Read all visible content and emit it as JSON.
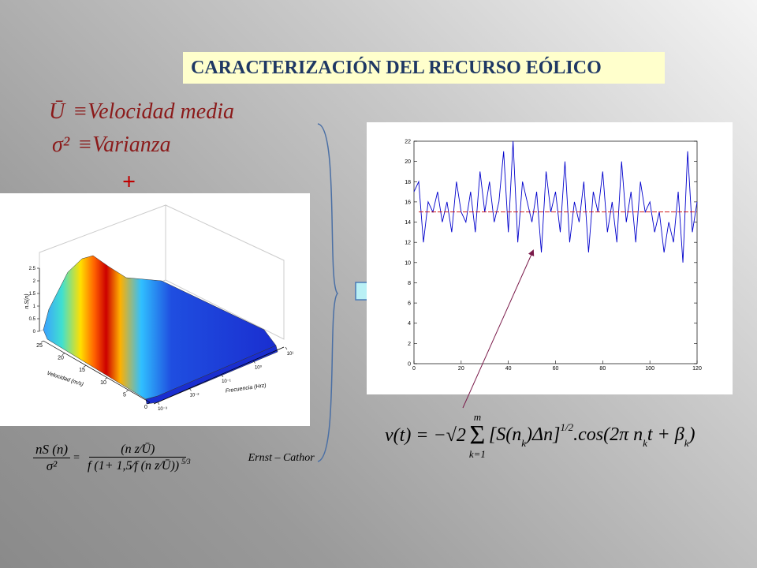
{
  "title": "CARACTERIZACIÓN DEL RECURSO EÓLICO",
  "definitions": [
    {
      "symbol": "Ū",
      "text": "≡Velocidad media"
    },
    {
      "symbol": "σ²",
      "text": "≡Varianza"
    }
  ],
  "plus": "+",
  "surface_plot": {
    "z_label": "n.S(n)",
    "x_label": "Velocidad (m/s)",
    "y_label": "Frecuencia (Hrz)",
    "zlim": [
      0,
      2.5
    ],
    "zticks": [
      0,
      0.5,
      1,
      1.5,
      2,
      2.5
    ],
    "xlim": [
      0,
      25
    ],
    "xticks": [
      0,
      5,
      10,
      15,
      20,
      25
    ],
    "ylim": [
      0.001,
      10
    ],
    "yticks": [
      {
        "value": 0.001,
        "label": "10⁻³"
      },
      {
        "value": 0.01,
        "label": "10⁻²"
      },
      {
        "value": 0.1,
        "label": "10⁻¹"
      },
      {
        "value": 1,
        "label": "10⁰"
      },
      {
        "value": 10,
        "label": "10¹"
      }
    ],
    "log_y": true
  },
  "spectrum_formula": {
    "lhs_num": "nS (n)",
    "lhs_den": "σ²",
    "equals": "=",
    "rhs_num": "(n z⁄Ū)",
    "rhs_den": "f (1+ 1,5⁄f (n z⁄Ū))",
    "exponent": "5/3",
    "name": "Ernst – Cathor"
  },
  "chart_data": {
    "type": "line",
    "series": [
      {
        "color": "#0000cc",
        "x": [
          0,
          2,
          4,
          6,
          8,
          10,
          12,
          14,
          16,
          18,
          20,
          22,
          24,
          26,
          28,
          30,
          32,
          34,
          36,
          38,
          40,
          42,
          44,
          46,
          48,
          50,
          52,
          54,
          56,
          58,
          60,
          62,
          64,
          66,
          68,
          70,
          72,
          74,
          76,
          78,
          80,
          82,
          84,
          86,
          88,
          90,
          92,
          94,
          96,
          98,
          100,
          102,
          104,
          106,
          108,
          110,
          112,
          114,
          116,
          118,
          120
        ],
        "values": [
          17,
          18,
          12,
          16,
          15,
          17,
          14,
          16,
          13,
          18,
          15,
          14,
          17,
          13,
          19,
          15,
          18,
          14,
          16,
          21,
          13,
          22,
          12,
          18,
          16,
          14,
          17,
          11,
          19,
          15,
          17,
          13,
          20,
          12,
          16,
          14,
          18,
          11,
          17,
          15,
          19,
          13,
          16,
          12,
          20,
          14,
          17,
          12,
          18,
          15,
          16,
          13,
          15,
          11,
          14,
          12,
          17,
          10,
          21,
          13,
          16
        ]
      },
      {
        "color": "#cc0000",
        "x": [
          2,
          120
        ],
        "values": [
          15,
          15
        ],
        "dashed": true
      }
    ],
    "xlim": [
      0,
      120
    ],
    "xticks": [
      0,
      20,
      40,
      60,
      80,
      100,
      120
    ],
    "ylim": [
      0,
      22
    ],
    "yticks": [
      0,
      2,
      4,
      6,
      8,
      10,
      12,
      14,
      16,
      18,
      20,
      22
    ]
  },
  "signal_formula": {
    "lhs": "v(t) = −√2",
    "sum_top": "m",
    "sum": "Σ",
    "sum_bottom": "k=1",
    "parts": [
      {
        "text": "[S(n",
        "style": "normal"
      },
      {
        "text": "k",
        "style": "sub"
      },
      {
        "text": ")Δn]",
        "style": "normal"
      },
      {
        "text": "1/2",
        "style": "sup"
      },
      {
        "text": ".cos(2π n",
        "style": "normal"
      },
      {
        "text": "k",
        "style": "sub"
      },
      {
        "text": "t + β",
        "style": "normal"
      },
      {
        "text": "k",
        "style": "sub"
      },
      {
        "text": ")",
        "style": "normal"
      }
    ]
  }
}
